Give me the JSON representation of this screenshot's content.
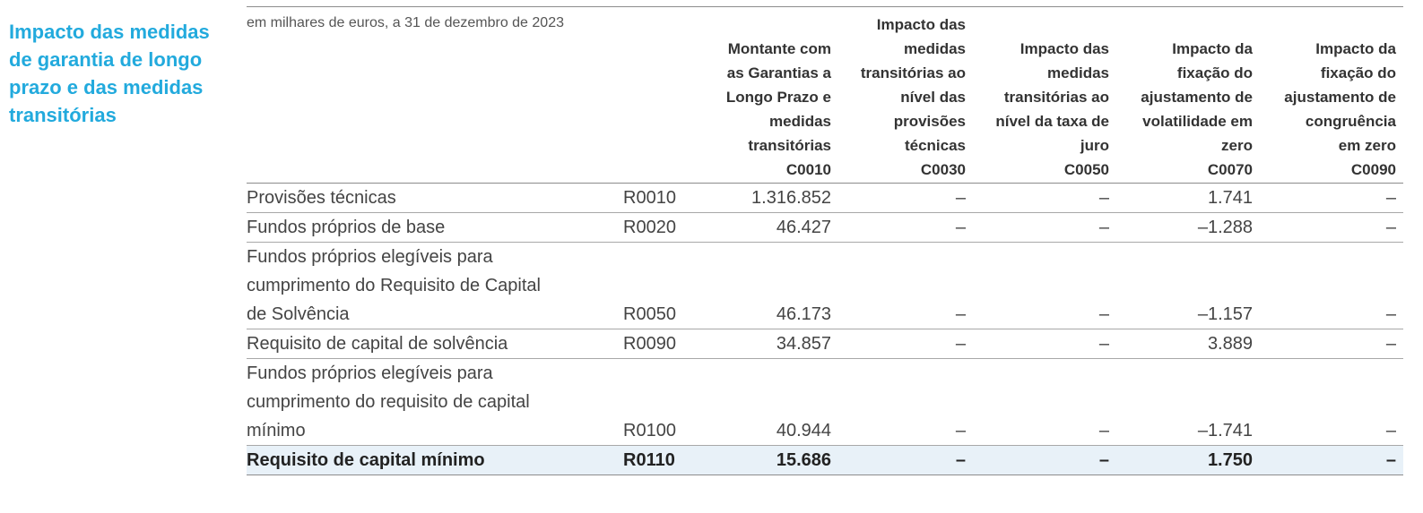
{
  "section_title": "Impacto das medidas\nde garantia de longo\nprazo e das medidas\ntransitórias",
  "units_note": "em milhares de euros, a 31 de dezembro de 2023",
  "columns": [
    {
      "header": "Montante com\nas Garantias a\nLongo Prazo e\nmedidas\ntransitórias",
      "code": "C0010"
    },
    {
      "header": "Impacto das\nmedidas\ntransitórias ao\nnível das\nprovisões\ntécnicas",
      "code": "C0030"
    },
    {
      "header": "Impacto das\nmedidas\ntransitórias ao\nnível da taxa de\njuro",
      "code": "C0050"
    },
    {
      "header": "Impacto da\nfixação do\najustamento de\nvolatilidade em\nzero",
      "code": "C0070"
    },
    {
      "header": "Impacto da\nfixação do\najustamento de\ncongruência\nem zero",
      "code": "C0090"
    }
  ],
  "rows": [
    {
      "label": "Provisões técnicas",
      "code": "R0010",
      "values": [
        "1.316.852",
        "–",
        "–",
        "1.741",
        "–"
      ]
    },
    {
      "label": "Fundos próprios de base",
      "code": "R0020",
      "values": [
        "46.427",
        "–",
        "–",
        "–1.288",
        "–"
      ]
    },
    {
      "label": "Fundos próprios elegíveis para\ncumprimento do Requisito de Capital\nde Solvência",
      "code": "R0050",
      "values": [
        "46.173",
        "–",
        "–",
        "–1.157",
        "–"
      ]
    },
    {
      "label": "Requisito de capital de solvência",
      "code": "R0090",
      "values": [
        "34.857",
        "–",
        "–",
        "3.889",
        "–"
      ]
    },
    {
      "label": "Fundos próprios elegíveis para\ncumprimento do requisito de capital\nmínimo",
      "code": "R0100",
      "values": [
        "40.944",
        "–",
        "–",
        "–1.741",
        "–"
      ]
    },
    {
      "label": "Requisito de capital mínimo",
      "code": "R0110",
      "values": [
        "15.686",
        "–",
        "–",
        "1.750",
        "–"
      ],
      "highlight": true
    }
  ]
}
